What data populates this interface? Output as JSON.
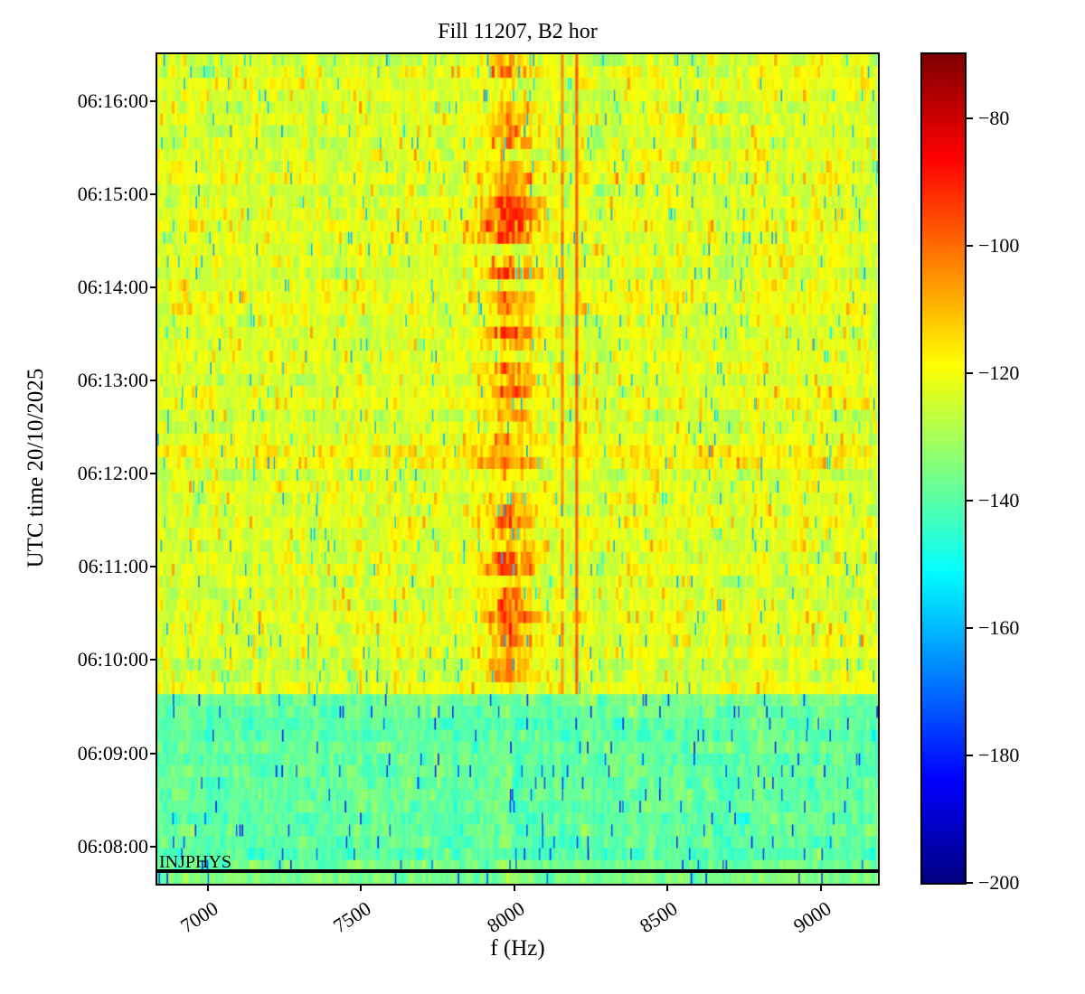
{
  "figure": {
    "title": "Fill 11207, B2 hor",
    "x_axis": {
      "label": "f (Hz)",
      "ticks": [
        "7000",
        "7500",
        "8000",
        "8500",
        "9000"
      ]
    },
    "y_axis": {
      "label": "UTC time 20/10/2025",
      "ticks": [
        "06:16:00",
        "06:15:00",
        "06:14:00",
        "06:13:00",
        "06:12:00",
        "06:11:00",
        "06:10:00",
        "06:09:00",
        "06:08:00"
      ]
    },
    "colorbar": {
      "tick_labels": [
        "−80",
        "−100",
        "−120",
        "−140",
        "−160",
        "−180",
        "−200"
      ]
    },
    "event_label": "INJPHYS"
  },
  "chart_data": {
    "type": "heatmap",
    "title": "Fill 11207, B2 hor",
    "xlabel": "f (Hz)",
    "ylabel": "UTC time 20/10/2025",
    "colormap": "jet",
    "grid": false,
    "legend": "none",
    "x_range_hz": [
      6835,
      9186
    ],
    "x_ticks_hz": [
      7000,
      7500,
      8000,
      8500,
      9000
    ],
    "y_date": "20/10/2025",
    "y_range_utc": [
      "06:07:36",
      "06:16:30"
    ],
    "y_ticks_utc": [
      "06:08:00",
      "06:09:00",
      "06:10:00",
      "06:11:00",
      "06:12:00",
      "06:13:00",
      "06:14:00",
      "06:15:00",
      "06:16:00"
    ],
    "value_range_db": [
      -200,
      -70
    ],
    "colorbar_ticks_db": [
      -80,
      -100,
      -120,
      -140,
      -160,
      -180,
      -200
    ],
    "time_bins": 70,
    "freq_bins": 250,
    "regions": [
      {
        "name": "pre-injection background",
        "time_start": "06:07:36",
        "time_end": "06:09:38",
        "mean_level_db": -139,
        "noise_sigma_db": 4.5,
        "speckle_level_db": -168,
        "speckle_prob": 0.045
      },
      {
        "name": "post-injection background",
        "time_start": "06:09:38",
        "time_end": "06:16:30",
        "mean_level_db": -123,
        "noise_sigma_db": 5.0,
        "speckle_level_db": -150,
        "speckle_prob": 0.045
      }
    ],
    "spectral_features": [
      {
        "name": "broad activity band",
        "freq_center_hz": 7990,
        "freq_sigma_hz": 55,
        "peak_level_db": -100,
        "time_start": "06:09:38",
        "time_end": "06:16:30",
        "intermittent": true
      },
      {
        "name": "narrow line (weak, intermittent)",
        "freq_hz": 8160,
        "level_db": -105,
        "time_start": "06:09:38",
        "time_end": "06:16:30",
        "intermittent": true
      },
      {
        "name": "narrow line (strong, persistent)",
        "freq_hz": 8205,
        "level_db": -99,
        "time_start": "06:09:38",
        "time_end": "06:16:30",
        "intermittent": false
      }
    ],
    "events": [
      {
        "label": "INJPHYS",
        "time": "06:07:44",
        "style": "horizontal black line, full width"
      }
    ]
  },
  "layout_hints": {
    "colorbar_position": "right",
    "x_tick_rotation_deg": 33,
    "background": "#ffffff"
  }
}
